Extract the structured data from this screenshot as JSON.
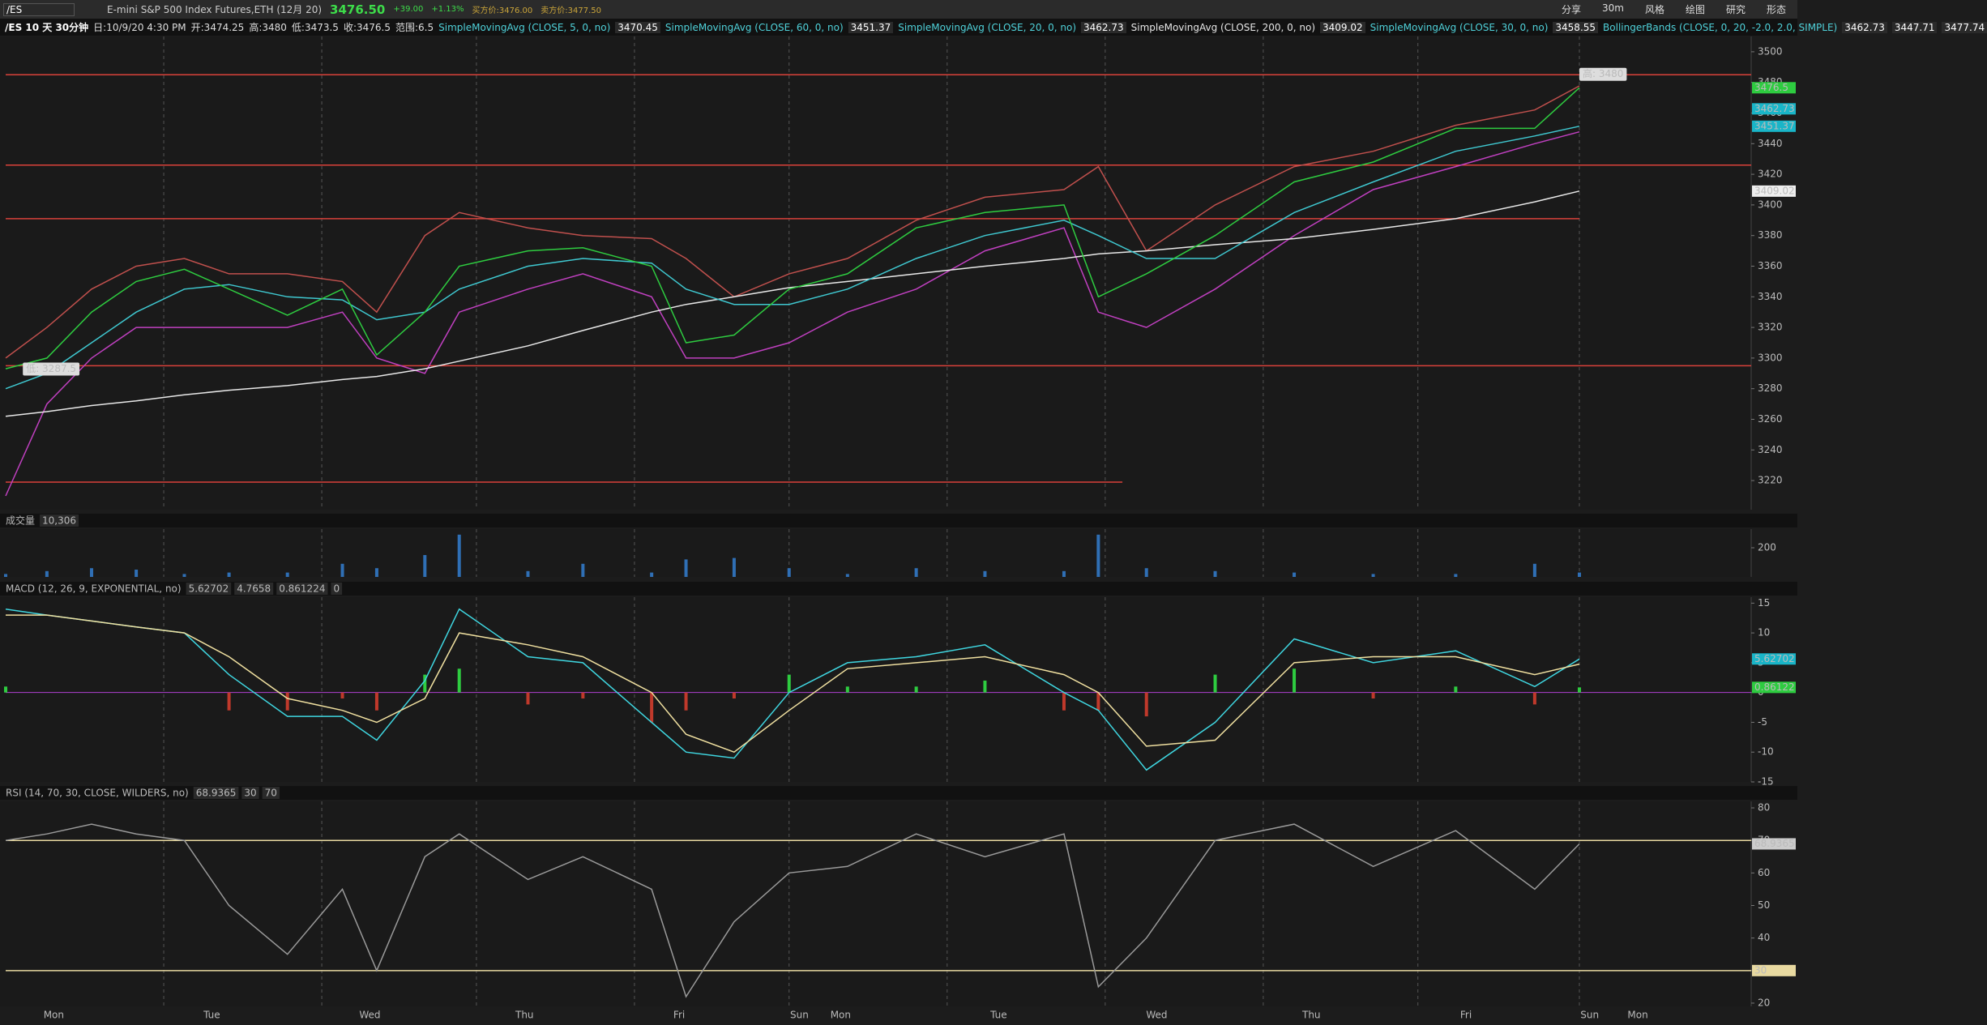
{
  "header": {
    "symbol": "/ES",
    "description": "E-mini S&P 500 Index Futures,ETH (12月 20)",
    "last": "3476.50",
    "change": "+39.00",
    "change_pct": "+1.13%",
    "bid": "买方价:3476.00",
    "ask": "卖方价:3477.50",
    "buttons": [
      "分享",
      "30m",
      "风格",
      "绘图",
      "研究",
      "形态"
    ],
    "symbol_period": "/ES 10 天 30分钟",
    "date": "日:10/9/20 4:30 PM",
    "open": "开:3474.25",
    "high": "高:3480",
    "low": "低:3473.5",
    "close": "收:3476.5",
    "range": "范围:6.5",
    "studies": [
      {
        "label": "SimpleMovingAvg (CLOSE, 5, 0, no)",
        "color": "#4fd1d9",
        "values": [
          "3470.45"
        ]
      },
      {
        "label": "SimpleMovingAvg (CLOSE, 60, 0, no)",
        "color": "#4fd1d9",
        "values": [
          "3451.37"
        ]
      },
      {
        "label": "SimpleMovingAvg (CLOSE, 20, 0, no)",
        "color": "#4fd1d9",
        "values": [
          "3462.73"
        ]
      },
      {
        "label": "SimpleMovingAvg (CLOSE, 200, 0, no)",
        "color": "#e6e6e6",
        "values": [
          "3409.02"
        ]
      },
      {
        "label": "SimpleMovingAvg (CLOSE, 30, 0, no)",
        "color": "#4fd1d9",
        "values": [
          "3458.55"
        ]
      },
      {
        "label": "BollingerBands (CLOSE, 0, 20, -2.0, 2.0, SIMPLE)",
        "color": "#4fd1d9",
        "values": [
          "3462.73",
          "3447.71",
          "3477.74"
        ]
      }
    ]
  },
  "chart_data": [
    {
      "type": "line",
      "xlim": [
        0,
        508
      ],
      "ylim": [
        3201,
        3510
      ],
      "yticks": [
        3220,
        3240,
        3260,
        3280,
        3300,
        3320,
        3340,
        3360,
        3380,
        3400,
        3420,
        3440,
        3460,
        3480,
        3500
      ],
      "session_breaks": [
        46,
        92,
        137,
        183,
        228,
        274,
        320,
        366,
        411,
        458
      ],
      "x": [
        0,
        12,
        25,
        38,
        52,
        65,
        82,
        98,
        108,
        122,
        132,
        152,
        168,
        188,
        198,
        212,
        228,
        245,
        265,
        285,
        308,
        318,
        332,
        352,
        375,
        398,
        422,
        445,
        458
      ],
      "series": [
        {
          "color": "#c0504d",
          "values": [
            3300,
            3320,
            3345,
            3360,
            3365,
            3355,
            3355,
            3350,
            3330,
            3380,
            3395,
            3385,
            3380,
            3378,
            3365,
            3340,
            3355,
            3365,
            3390,
            3405,
            3410,
            3425,
            3370,
            3400,
            3425,
            3435,
            3452,
            3462,
            3477.74
          ]
        },
        {
          "color": "#c040c0",
          "values": [
            3210,
            3270,
            3300,
            3320,
            3320,
            3320,
            3320,
            3330,
            3300,
            3290,
            3330,
            3345,
            3355,
            3340,
            3300,
            3300,
            3310,
            3330,
            3345,
            3370,
            3385,
            3330,
            3320,
            3345,
            3380,
            3410,
            3425,
            3440,
            3447.71
          ]
        },
        {
          "color": "#e8e8e8",
          "values": [
            3262,
            3265,
            3269,
            3272,
            3276,
            3279,
            3282,
            3286,
            3288,
            3293,
            3298,
            3308,
            3318,
            3330,
            3335,
            3340,
            3346,
            3350,
            3355,
            3360,
            3365,
            3368,
            3370,
            3374,
            3378,
            3384,
            3391,
            3402,
            3409.02
          ]
        },
        {
          "color": "#3fc8d0",
          "values": [
            3280,
            3290,
            3310,
            3330,
            3345,
            3348,
            3340,
            3338,
            3325,
            3330,
            3345,
            3360,
            3365,
            3362,
            3345,
            3335,
            3335,
            3345,
            3365,
            3380,
            3390,
            3380,
            3365,
            3365,
            3395,
            3415,
            3435,
            3445,
            3451.37
          ]
        },
        {
          "color": "#2ecc40",
          "values": [
            3293,
            3300,
            3330,
            3350,
            3358,
            3345,
            3328,
            3345,
            3302,
            3330,
            3360,
            3370,
            3372,
            3360,
            3310,
            3315,
            3345,
            3355,
            3385,
            3395,
            3400,
            3340,
            3355,
            3380,
            3415,
            3428,
            3450,
            3450,
            3476.5
          ]
        }
      ],
      "levels": [
        3485,
        3426,
        3391,
        3295,
        3219
      ],
      "level_ends": [
        508,
        508,
        458,
        508,
        325
      ],
      "level_color": "#d9413a",
      "annotations": [
        {
          "text": "高: 3480",
          "value": 3480,
          "x": 458
        },
        {
          "text": "低: 3287.5",
          "value": 3287.5,
          "x": 5
        }
      ],
      "tags": [
        {
          "value": 3476.5,
          "color": "#2ecc40"
        },
        {
          "value": 3462.73,
          "color": "#19b5c8"
        },
        {
          "value": 3451.37,
          "color": "#19b5c8"
        },
        {
          "value": 3409.02,
          "color": "#eeeeee"
        }
      ]
    },
    {
      "type": "bar",
      "title": "成交量",
      "header_values": [
        "10,306"
      ],
      "xlim": [
        0,
        508
      ],
      "ylim": [
        0,
        328
      ],
      "yticks": [
        200
      ],
      "color": "#2f6fb5",
      "x": [
        0,
        12,
        25,
        38,
        52,
        65,
        82,
        98,
        108,
        122,
        132,
        152,
        168,
        188,
        198,
        212,
        228,
        245,
        265,
        285,
        308,
        318,
        332,
        352,
        375,
        398,
        422,
        445,
        458
      ],
      "values": [
        20,
        40,
        60,
        50,
        20,
        30,
        30,
        90,
        60,
        150,
        290,
        40,
        90,
        30,
        120,
        130,
        60,
        20,
        60,
        40,
        40,
        290,
        60,
        40,
        30,
        20,
        20,
        90,
        30
      ]
    },
    {
      "type": "line",
      "title": "MACD (12, 26, 9, EXPONENTIAL, no)",
      "header_values": [
        "5.62702",
        "4.7658",
        "0.861224",
        "0"
      ],
      "xlim": [
        0,
        508
      ],
      "ylim": [
        -15,
        16
      ],
      "yticks": [
        15,
        10,
        5,
        0,
        -5,
        -10,
        -15
      ],
      "x": [
        0,
        12,
        25,
        38,
        52,
        65,
        82,
        98,
        108,
        122,
        132,
        152,
        168,
        188,
        198,
        212,
        228,
        245,
        265,
        285,
        308,
        318,
        332,
        352,
        375,
        398,
        422,
        445,
        458
      ],
      "series": [
        {
          "type": "bar",
          "color": "#2ecc40",
          "negative_color": "#c0392b",
          "values": [
            1,
            0,
            0,
            0,
            0,
            -3,
            -3,
            -1,
            -3,
            3,
            4,
            -2,
            -1,
            -5,
            -3,
            -1,
            3,
            1,
            1,
            2,
            -3,
            -3,
            -4,
            3,
            4,
            -1,
            1,
            -2,
            0.861224
          ]
        },
        {
          "color": "#3fd6e0",
          "values": [
            14,
            13,
            12,
            11,
            10,
            3,
            -4,
            -4,
            -8,
            2,
            14,
            6,
            5,
            -5,
            -10,
            -11,
            0,
            5,
            6,
            8,
            0,
            -3,
            -13,
            -5,
            9,
            5,
            7,
            1,
            5.62702
          ]
        },
        {
          "color": "#f0e0a0",
          "values": [
            13,
            13,
            12,
            11,
            10,
            6,
            -1,
            -3,
            -5,
            -1,
            10,
            8,
            6,
            0,
            -7,
            -10,
            -3,
            4,
            5,
            6,
            3,
            0,
            -9,
            -8,
            5,
            6,
            6,
            3,
            4.7658
          ]
        }
      ],
      "tags": [
        {
          "value": 5.62702,
          "color": "#19b5c8"
        },
        {
          "value": 0.86122,
          "color": "#2ecc40"
        }
      ]
    },
    {
      "type": "line",
      "title": "RSI (14, 70, 30, CLOSE, WILDERS, no)",
      "header_values": [
        "68.9365",
        "30",
        "70"
      ],
      "xlim": [
        0,
        508
      ],
      "ylim": [
        19,
        82
      ],
      "yticks": [
        20,
        30,
        40,
        50,
        60,
        70,
        80
      ],
      "x": [
        0,
        12,
        25,
        38,
        52,
        65,
        82,
        98,
        108,
        122,
        132,
        152,
        168,
        188,
        198,
        212,
        228,
        245,
        265,
        285,
        308,
        318,
        332,
        352,
        375,
        398,
        422,
        445,
        458
      ],
      "series": [
        {
          "color": "#9a9a9a",
          "values": [
            70,
            72,
            75,
            72,
            70,
            50,
            35,
            55,
            30,
            65,
            72,
            58,
            65,
            55,
            22,
            45,
            60,
            62,
            72,
            65,
            72,
            25,
            40,
            70,
            75,
            62,
            73,
            55,
            68.9365
          ]
        }
      ],
      "levels": [
        30,
        70
      ],
      "level_ends": [
        508,
        508
      ],
      "level_color": "#e8d9a0",
      "tags": [
        {
          "value": 68.9365,
          "color": "#cccccc"
        },
        {
          "value": 30,
          "color": "#e8d9a0"
        }
      ],
      "xticks": [
        {
          "value": 14,
          "label": "Mon"
        },
        {
          "value": 60,
          "label": "Tue"
        },
        {
          "value": 106,
          "label": "Wed"
        },
        {
          "value": 151,
          "label": "Thu"
        },
        {
          "value": 196,
          "label": "Fri"
        },
        {
          "value": 231,
          "label": "Sun"
        },
        {
          "value": 243,
          "label": "Mon"
        },
        {
          "value": 289,
          "label": "Tue"
        },
        {
          "value": 335,
          "label": "Wed"
        },
        {
          "value": 380,
          "label": "Thu"
        },
        {
          "value": 425,
          "label": "Fri"
        },
        {
          "value": 461,
          "label": "Sun"
        },
        {
          "value": 475,
          "label": "Mon"
        }
      ]
    }
  ]
}
